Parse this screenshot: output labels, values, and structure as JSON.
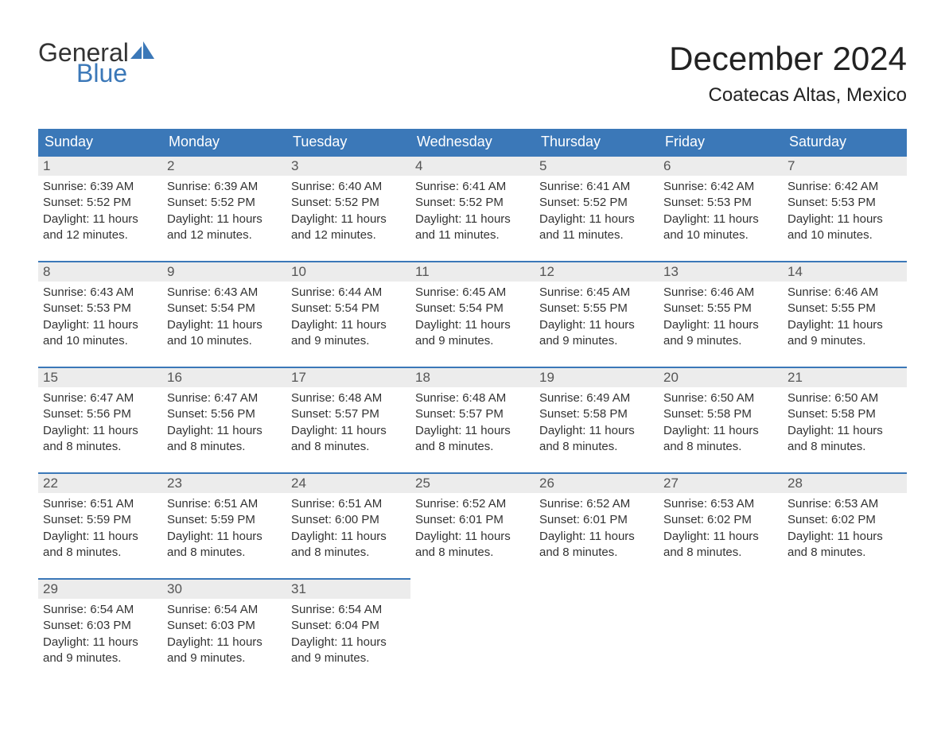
{
  "brand": {
    "general": "General",
    "blue": "Blue",
    "sail_color": "#3b78b8"
  },
  "title": "December 2024",
  "location": "Coatecas Altas, Mexico",
  "colors": {
    "header_bg": "#3b78b8",
    "header_text": "#ffffff",
    "daynum_bg": "#ececec",
    "daynum_text": "#555555",
    "body_text": "#333333",
    "row_divider": "#3b78b8",
    "page_bg": "#ffffff"
  },
  "typography": {
    "title_fontsize_pt": 32,
    "location_fontsize_pt": 18,
    "header_fontsize_pt": 14,
    "body_fontsize_pt": 11
  },
  "weekdays": [
    "Sunday",
    "Monday",
    "Tuesday",
    "Wednesday",
    "Thursday",
    "Friday",
    "Saturday"
  ],
  "weeks": [
    [
      {
        "n": "1",
        "sunrise": "Sunrise: 6:39 AM",
        "sunset": "Sunset: 5:52 PM",
        "daylight": "Daylight: 11 hours and 12 minutes."
      },
      {
        "n": "2",
        "sunrise": "Sunrise: 6:39 AM",
        "sunset": "Sunset: 5:52 PM",
        "daylight": "Daylight: 11 hours and 12 minutes."
      },
      {
        "n": "3",
        "sunrise": "Sunrise: 6:40 AM",
        "sunset": "Sunset: 5:52 PM",
        "daylight": "Daylight: 11 hours and 12 minutes."
      },
      {
        "n": "4",
        "sunrise": "Sunrise: 6:41 AM",
        "sunset": "Sunset: 5:52 PM",
        "daylight": "Daylight: 11 hours and 11 minutes."
      },
      {
        "n": "5",
        "sunrise": "Sunrise: 6:41 AM",
        "sunset": "Sunset: 5:52 PM",
        "daylight": "Daylight: 11 hours and 11 minutes."
      },
      {
        "n": "6",
        "sunrise": "Sunrise: 6:42 AM",
        "sunset": "Sunset: 5:53 PM",
        "daylight": "Daylight: 11 hours and 10 minutes."
      },
      {
        "n": "7",
        "sunrise": "Sunrise: 6:42 AM",
        "sunset": "Sunset: 5:53 PM",
        "daylight": "Daylight: 11 hours and 10 minutes."
      }
    ],
    [
      {
        "n": "8",
        "sunrise": "Sunrise: 6:43 AM",
        "sunset": "Sunset: 5:53 PM",
        "daylight": "Daylight: 11 hours and 10 minutes."
      },
      {
        "n": "9",
        "sunrise": "Sunrise: 6:43 AM",
        "sunset": "Sunset: 5:54 PM",
        "daylight": "Daylight: 11 hours and 10 minutes."
      },
      {
        "n": "10",
        "sunrise": "Sunrise: 6:44 AM",
        "sunset": "Sunset: 5:54 PM",
        "daylight": "Daylight: 11 hours and 9 minutes."
      },
      {
        "n": "11",
        "sunrise": "Sunrise: 6:45 AM",
        "sunset": "Sunset: 5:54 PM",
        "daylight": "Daylight: 11 hours and 9 minutes."
      },
      {
        "n": "12",
        "sunrise": "Sunrise: 6:45 AM",
        "sunset": "Sunset: 5:55 PM",
        "daylight": "Daylight: 11 hours and 9 minutes."
      },
      {
        "n": "13",
        "sunrise": "Sunrise: 6:46 AM",
        "sunset": "Sunset: 5:55 PM",
        "daylight": "Daylight: 11 hours and 9 minutes."
      },
      {
        "n": "14",
        "sunrise": "Sunrise: 6:46 AM",
        "sunset": "Sunset: 5:55 PM",
        "daylight": "Daylight: 11 hours and 9 minutes."
      }
    ],
    [
      {
        "n": "15",
        "sunrise": "Sunrise: 6:47 AM",
        "sunset": "Sunset: 5:56 PM",
        "daylight": "Daylight: 11 hours and 8 minutes."
      },
      {
        "n": "16",
        "sunrise": "Sunrise: 6:47 AM",
        "sunset": "Sunset: 5:56 PM",
        "daylight": "Daylight: 11 hours and 8 minutes."
      },
      {
        "n": "17",
        "sunrise": "Sunrise: 6:48 AM",
        "sunset": "Sunset: 5:57 PM",
        "daylight": "Daylight: 11 hours and 8 minutes."
      },
      {
        "n": "18",
        "sunrise": "Sunrise: 6:48 AM",
        "sunset": "Sunset: 5:57 PM",
        "daylight": "Daylight: 11 hours and 8 minutes."
      },
      {
        "n": "19",
        "sunrise": "Sunrise: 6:49 AM",
        "sunset": "Sunset: 5:58 PM",
        "daylight": "Daylight: 11 hours and 8 minutes."
      },
      {
        "n": "20",
        "sunrise": "Sunrise: 6:50 AM",
        "sunset": "Sunset: 5:58 PM",
        "daylight": "Daylight: 11 hours and 8 minutes."
      },
      {
        "n": "21",
        "sunrise": "Sunrise: 6:50 AM",
        "sunset": "Sunset: 5:58 PM",
        "daylight": "Daylight: 11 hours and 8 minutes."
      }
    ],
    [
      {
        "n": "22",
        "sunrise": "Sunrise: 6:51 AM",
        "sunset": "Sunset: 5:59 PM",
        "daylight": "Daylight: 11 hours and 8 minutes."
      },
      {
        "n": "23",
        "sunrise": "Sunrise: 6:51 AM",
        "sunset": "Sunset: 5:59 PM",
        "daylight": "Daylight: 11 hours and 8 minutes."
      },
      {
        "n": "24",
        "sunrise": "Sunrise: 6:51 AM",
        "sunset": "Sunset: 6:00 PM",
        "daylight": "Daylight: 11 hours and 8 minutes."
      },
      {
        "n": "25",
        "sunrise": "Sunrise: 6:52 AM",
        "sunset": "Sunset: 6:01 PM",
        "daylight": "Daylight: 11 hours and 8 minutes."
      },
      {
        "n": "26",
        "sunrise": "Sunrise: 6:52 AM",
        "sunset": "Sunset: 6:01 PM",
        "daylight": "Daylight: 11 hours and 8 minutes."
      },
      {
        "n": "27",
        "sunrise": "Sunrise: 6:53 AM",
        "sunset": "Sunset: 6:02 PM",
        "daylight": "Daylight: 11 hours and 8 minutes."
      },
      {
        "n": "28",
        "sunrise": "Sunrise: 6:53 AM",
        "sunset": "Sunset: 6:02 PM",
        "daylight": "Daylight: 11 hours and 8 minutes."
      }
    ],
    [
      {
        "n": "29",
        "sunrise": "Sunrise: 6:54 AM",
        "sunset": "Sunset: 6:03 PM",
        "daylight": "Daylight: 11 hours and 9 minutes."
      },
      {
        "n": "30",
        "sunrise": "Sunrise: 6:54 AM",
        "sunset": "Sunset: 6:03 PM",
        "daylight": "Daylight: 11 hours and 9 minutes."
      },
      {
        "n": "31",
        "sunrise": "Sunrise: 6:54 AM",
        "sunset": "Sunset: 6:04 PM",
        "daylight": "Daylight: 11 hours and 9 minutes."
      },
      null,
      null,
      null,
      null
    ]
  ]
}
